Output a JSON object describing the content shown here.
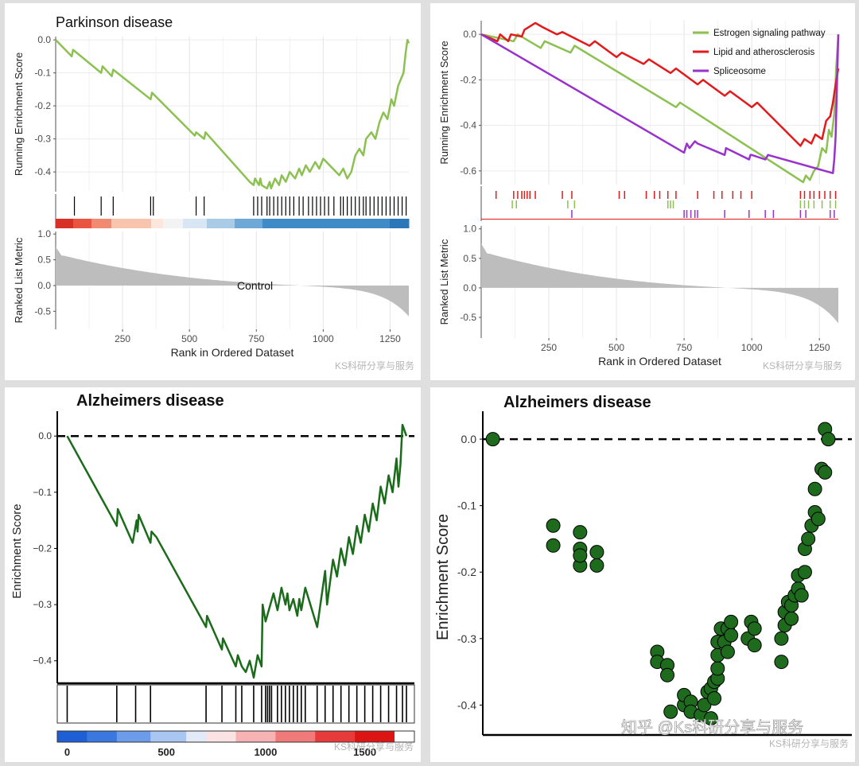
{
  "watermark": "KS科研分享与服务",
  "watermark_zh": "知乎 @Ks科研分享与服务",
  "colors": {
    "green_light": "#8cc152",
    "red": "#e31a1c",
    "purple": "#9932cc",
    "dark_green": "#1a6b1a",
    "point_fill": "#1e6b1e",
    "grey": "#bdbdbd"
  },
  "chart_data": [
    {
      "type": "line",
      "id": "gsea_parkinson",
      "title": "Parkinson disease",
      "xlabel": "Rank in Ordered Dataset",
      "ylabel_top": "Running Enrichment Score",
      "ylabel_bottom": "Ranked List Metric",
      "x_range": [
        0,
        1320
      ],
      "x_ticks": [
        250,
        500,
        750,
        1000,
        1250
      ],
      "y_ticks_top": [
        0.0,
        -0.1,
        -0.2,
        -0.3,
        -0.4
      ],
      "y_ticks_top_labels": [
        "0.0",
        "-0.1",
        "-0.2",
        "-0.3",
        "-0.4"
      ],
      "y_range_top": [
        -0.46,
        0.01
      ],
      "y_ticks_bottom": [
        1.0,
        0.5,
        0.0,
        -0.5
      ],
      "y_ticks_bottom_labels": [
        "1.0",
        "0.5",
        "0.0",
        "-0.5"
      ],
      "y_range_bottom": [
        -0.85,
        1.05
      ],
      "annotation": "Control",
      "series": [
        {
          "name": "Parkinson disease",
          "color": "#8cc152",
          "x": [
            0,
            60,
            65,
            170,
            175,
            210,
            215,
            355,
            360,
            520,
            525,
            555,
            560,
            725,
            740,
            745,
            760,
            765,
            770,
            790,
            800,
            805,
            820,
            835,
            845,
            860,
            875,
            895,
            910,
            920,
            935,
            950,
            970,
            985,
            1000,
            1060,
            1075,
            1090,
            1105,
            1120,
            1135,
            1150,
            1160,
            1180,
            1195,
            1210,
            1225,
            1240,
            1255,
            1265,
            1280,
            1290,
            1300,
            1308,
            1315,
            1320
          ],
          "y": [
            0.0,
            -0.05,
            -0.03,
            -0.1,
            -0.08,
            -0.11,
            -0.09,
            -0.18,
            -0.16,
            -0.29,
            -0.28,
            -0.3,
            -0.28,
            -0.43,
            -0.44,
            -0.42,
            -0.44,
            -0.42,
            -0.44,
            -0.45,
            -0.43,
            -0.45,
            -0.42,
            -0.44,
            -0.41,
            -0.43,
            -0.4,
            -0.42,
            -0.39,
            -0.41,
            -0.38,
            -0.4,
            -0.37,
            -0.39,
            -0.36,
            -0.41,
            -0.39,
            -0.42,
            -0.4,
            -0.35,
            -0.33,
            -0.35,
            -0.3,
            -0.28,
            -0.3,
            -0.25,
            -0.22,
            -0.24,
            -0.18,
            -0.2,
            -0.14,
            -0.12,
            -0.1,
            -0.04,
            0.0,
            -0.01
          ]
        }
      ],
      "hits": [
        70,
        170,
        215,
        355,
        365,
        525,
        555,
        740,
        755,
        770,
        790,
        800,
        815,
        830,
        845,
        860,
        875,
        890,
        910,
        925,
        945,
        960,
        975,
        990,
        1005,
        1020,
        1040,
        1065,
        1075,
        1090,
        1105,
        1120,
        1135,
        1150,
        1160,
        1175,
        1190,
        1205,
        1220,
        1235,
        1250,
        1265,
        1280,
        1295,
        1310
      ]
    },
    {
      "type": "line",
      "id": "gsea_multi",
      "title": "",
      "xlabel": "Rank in Ordered Dataset",
      "ylabel_top": "Running Enrichment Score",
      "ylabel_bottom": "Ranked List Metric",
      "x_range": [
        0,
        1320
      ],
      "x_ticks": [
        250,
        500,
        750,
        1000,
        1250
      ],
      "y_ticks_top": [
        0.0,
        -0.2,
        -0.4,
        -0.6
      ],
      "y_ticks_top_labels": [
        "0.0",
        "-0.2",
        "-0.4",
        "-0.6"
      ],
      "y_range_top": [
        -0.66,
        0.06
      ],
      "y_ticks_bottom": [
        1.0,
        0.5,
        0.0,
        -0.5
      ],
      "y_ticks_bottom_labels": [
        "1.0",
        "0.5",
        "0.0",
        "-0.5"
      ],
      "y_range_bottom": [
        -0.85,
        1.05
      ],
      "legend_position": "top-right",
      "series": [
        {
          "name": "Estrogen signaling pathway",
          "color": "#8cc152",
          "x": [
            0,
            120,
            135,
            220,
            235,
            330,
            345,
            720,
            735,
            1190,
            1200,
            1215,
            1230,
            1245,
            1260,
            1275,
            1285,
            1295,
            1305,
            1312,
            1320
          ],
          "y": [
            0.0,
            -0.03,
            0.0,
            -0.06,
            -0.03,
            -0.08,
            -0.05,
            -0.32,
            -0.3,
            -0.65,
            -0.62,
            -0.64,
            -0.6,
            -0.58,
            -0.5,
            -0.52,
            -0.42,
            -0.45,
            -0.35,
            -0.15,
            0.0
          ]
        },
        {
          "name": "Lipid and atherosclerosis",
          "color": "#e31a1c",
          "x": [
            0,
            60,
            70,
            100,
            110,
            150,
            160,
            200,
            230,
            280,
            300,
            400,
            420,
            500,
            520,
            600,
            620,
            700,
            720,
            800,
            820,
            900,
            920,
            1000,
            1020,
            1180,
            1195,
            1220,
            1235,
            1260,
            1275,
            1290,
            1300,
            1310,
            1320
          ],
          "y": [
            0.0,
            -0.03,
            0.0,
            -0.03,
            0.0,
            -0.01,
            0.02,
            0.05,
            0.03,
            0.0,
            0.01,
            -0.05,
            -0.03,
            -0.1,
            -0.08,
            -0.13,
            -0.11,
            -0.17,
            -0.15,
            -0.22,
            -0.2,
            -0.27,
            -0.25,
            -0.32,
            -0.3,
            -0.49,
            -0.46,
            -0.48,
            -0.44,
            -0.46,
            -0.38,
            -0.36,
            -0.3,
            -0.22,
            -0.15
          ]
        },
        {
          "name": "Spliceosome",
          "color": "#9932cc",
          "x": [
            0,
            750,
            760,
            770,
            790,
            800,
            900,
            905,
            990,
            995,
            1000,
            1050,
            1060,
            1300,
            1305,
            1310,
            1320
          ],
          "y": [
            0.0,
            -0.52,
            -0.48,
            -0.5,
            -0.47,
            -0.48,
            -0.53,
            -0.5,
            -0.55,
            -0.53,
            -0.53,
            -0.55,
            -0.53,
            -0.61,
            -0.55,
            -0.45,
            0.0
          ]
        }
      ]
    },
    {
      "type": "line",
      "id": "es_alzheimers",
      "title": "Alzheimers disease",
      "xlabel": "",
      "ylabel": "Enrichment Score",
      "x_range": [
        -50,
        1750
      ],
      "x_ticks": [
        0,
        500,
        1000,
        1500
      ],
      "y_ticks": [
        0.0,
        -0.1,
        -0.2,
        -0.3,
        -0.4
      ],
      "y_ticks_labels": [
        "0.0",
        "−0.1",
        "−0.2",
        "−0.3",
        "−0.4"
      ],
      "y_range": [
        -0.44,
        0.03
      ],
      "series": [
        {
          "name": "Alzheimers disease",
          "color": "#1a6b1a",
          "x": [
            0,
            250,
            255,
            330,
            345,
            350,
            355,
            360,
            420,
            425,
            450,
            700,
            705,
            780,
            785,
            850,
            860,
            880,
            900,
            920,
            940,
            960,
            980,
            985,
            1000,
            1040,
            1060,
            1080,
            1100,
            1110,
            1120,
            1140,
            1160,
            1170,
            1180,
            1200,
            1260,
            1300,
            1310,
            1340,
            1360,
            1380,
            1400,
            1420,
            1440,
            1460,
            1480,
            1500,
            1520,
            1540,
            1560,
            1580,
            1600,
            1620,
            1640,
            1660,
            1670,
            1680,
            1690,
            1700,
            1710
          ],
          "y": [
            0.0,
            -0.16,
            -0.13,
            -0.19,
            -0.16,
            -0.15,
            -0.17,
            -0.14,
            -0.19,
            -0.17,
            -0.18,
            -0.34,
            -0.32,
            -0.38,
            -0.36,
            -0.41,
            -0.39,
            -0.41,
            -0.42,
            -0.4,
            -0.43,
            -0.39,
            -0.41,
            -0.3,
            -0.33,
            -0.28,
            -0.31,
            -0.27,
            -0.3,
            -0.28,
            -0.31,
            -0.29,
            -0.32,
            -0.29,
            -0.31,
            -0.27,
            -0.34,
            -0.24,
            -0.3,
            -0.22,
            -0.25,
            -0.2,
            -0.23,
            -0.18,
            -0.21,
            -0.16,
            -0.19,
            -0.14,
            -0.17,
            -0.12,
            -0.15,
            -0.09,
            -0.12,
            -0.07,
            -0.1,
            -0.04,
            -0.09,
            -0.05,
            0.02,
            0.01,
            0.0
          ]
        }
      ],
      "hits": [
        0,
        250,
        345,
        420,
        700,
        780,
        850,
        880,
        940,
        980,
        1000,
        1010,
        1020,
        1030,
        1060,
        1080,
        1100,
        1120,
        1140,
        1160,
        1180,
        1200,
        1260,
        1300,
        1340,
        1380,
        1420,
        1460,
        1500,
        1540,
        1580,
        1620,
        1660,
        1690,
        1710
      ]
    },
    {
      "type": "scatter",
      "id": "es_alzheimers_points",
      "title": "Alzheimers disease",
      "ylabel": "Enrichment Score",
      "y_ticks": [
        0.0,
        -0.1,
        -0.2,
        -0.3,
        -0.4
      ],
      "y_ticks_labels": [
        "0.0",
        "-0.1",
        "-0.2",
        "-0.3",
        "-0.4"
      ],
      "y_range": [
        -0.445,
        0.03
      ],
      "x_range": [
        0,
        1100
      ],
      "x": [
        30,
        210,
        210,
        290,
        290,
        290,
        290,
        340,
        340,
        520,
        520,
        550,
        550,
        560,
        600,
        600,
        620,
        620,
        650,
        660,
        670,
        680,
        680,
        690,
        690,
        700,
        700,
        700,
        700,
        710,
        720,
        730,
        730,
        740,
        740,
        790,
        800,
        810,
        810,
        890,
        890,
        900,
        900,
        910,
        920,
        920,
        930,
        940,
        940,
        950,
        960,
        960,
        970,
        980,
        990,
        990,
        1000,
        1010,
        1020,
        1020,
        1030
      ],
      "y": [
        0.0,
        -0.13,
        -0.16,
        -0.14,
        -0.165,
        -0.19,
        -0.175,
        -0.17,
        -0.19,
        -0.32,
        -0.335,
        -0.34,
        -0.355,
        -0.41,
        -0.4,
        -0.385,
        -0.395,
        -0.41,
        -0.415,
        -0.4,
        -0.38,
        -0.375,
        -0.42,
        -0.365,
        -0.39,
        -0.36,
        -0.345,
        -0.325,
        -0.305,
        -0.285,
        -0.305,
        -0.285,
        -0.32,
        -0.295,
        -0.275,
        -0.3,
        -0.275,
        -0.285,
        -0.31,
        -0.335,
        -0.3,
        -0.28,
        -0.26,
        -0.245,
        -0.27,
        -0.25,
        -0.235,
        -0.225,
        -0.205,
        -0.235,
        -0.2,
        -0.165,
        -0.15,
        -0.13,
        -0.11,
        -0.075,
        -0.12,
        -0.045,
        -0.05,
        0.015,
        0.0
      ]
    }
  ]
}
